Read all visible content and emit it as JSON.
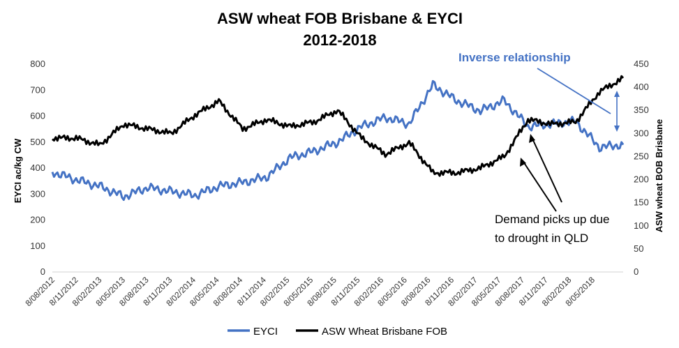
{
  "chart_data": {
    "type": "line",
    "title": "ASW wheat FOB Brisbane & EYCI",
    "subtitle": "2012-2018",
    "ylabel_left": "EYCI ac/kg CW",
    "ylabel_right": "ASW wheat BOB Brisbane",
    "ylim_left": [
      0,
      800
    ],
    "yticks_left": [
      "0",
      "100",
      "200",
      "300",
      "400",
      "500",
      "600",
      "700",
      "800"
    ],
    "ylim_right": [
      0,
      450
    ],
    "yticks_right": [
      "0",
      "50",
      "100",
      "150",
      "200",
      "250",
      "300",
      "350",
      "400",
      "450"
    ],
    "x_tick_labels": [
      "8/08/2012",
      "8/11/2012",
      "8/02/2013",
      "8/05/2013",
      "8/08/2013",
      "8/11/2013",
      "8/02/2014",
      "8/05/2014",
      "8/08/2014",
      "8/11/2014",
      "8/02/2015",
      "8/05/2015",
      "8/08/2015",
      "8/11/2015",
      "8/02/2016",
      "8/05/2016",
      "8/08/2016",
      "8/11/2016",
      "8/02/2017",
      "8/05/2017",
      "8/08/2017",
      "8/11/2017",
      "8/02/2018",
      "8/05/2018"
    ],
    "x": [
      "Aug-12",
      "Nov-12",
      "Feb-13",
      "May-13",
      "Aug-13",
      "Nov-13",
      "Feb-14",
      "May-14",
      "Aug-14",
      "Nov-14",
      "Feb-15",
      "May-15",
      "Aug-15",
      "Nov-15",
      "Feb-16",
      "May-16",
      "Aug-16",
      "Nov-16",
      "Feb-17",
      "May-17",
      "Aug-17",
      "Nov-17",
      "Feb-18",
      "May-18",
      "Aug-18"
    ],
    "grid": false,
    "legend_position": "bottom",
    "series": [
      {
        "name": "EYCI",
        "axis": "left",
        "color": "#4472C4",
        "values": [
          385,
          355,
          330,
          290,
          325,
          310,
          295,
          330,
          345,
          365,
          440,
          465,
          500,
          560,
          595,
          570,
          720,
          660,
          620,
          660,
          560,
          570,
          580,
          480,
          490
        ]
      },
      {
        "name": "ASW Wheat Brisbane FOB",
        "axis": "right",
        "color": "#000000",
        "values": [
          290,
          290,
          275,
          320,
          310,
          300,
          340,
          370,
          310,
          330,
          315,
          325,
          350,
          290,
          255,
          280,
          215,
          215,
          225,
          250,
          330,
          320,
          325,
          390,
          420
        ]
      }
    ],
    "annotations": [
      {
        "text": "Inverse relationship",
        "color": "#4472C4"
      },
      {
        "text": "Demand picks up due",
        "color": "#000000"
      },
      {
        "text": "to drought  in QLD",
        "color": "#000000"
      }
    ]
  }
}
